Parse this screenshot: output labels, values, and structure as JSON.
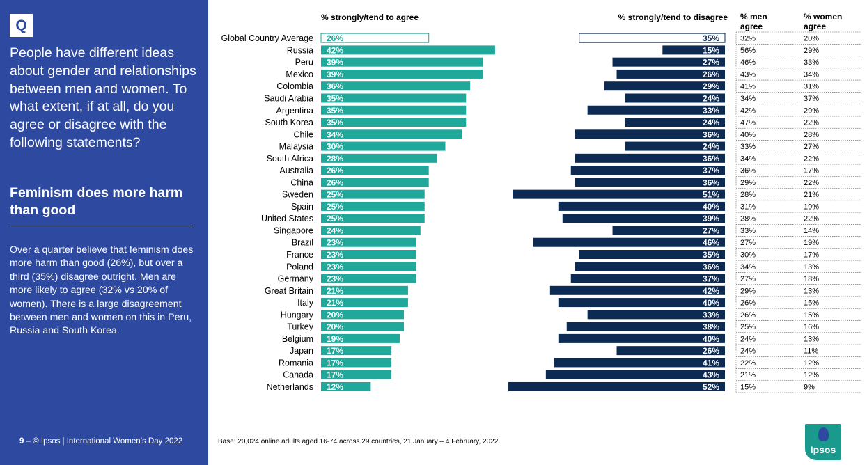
{
  "sidebar": {
    "badge": "Q",
    "question": "People have different ideas about gender and relationships between men and women. To what extent, if at all, do you agree or disagree  with the following statements?",
    "statement": "Feminism does more harm than good",
    "summary": "Over a quarter believe that feminism does more harm than good (26%), but over a third (35%) disagree outright. Men are more likely to agree (32% vs 20% of women). There is a large disagreement between men and women on this in Peru, Russia and South Korea.",
    "footer_page": "9 –",
    "footer_text": "© Ipsos | International Women’s Day 2022"
  },
  "footer": {
    "base": "Base: 20,024 online adults aged 16-74 across 29 countries, 21 January – 4 February, 2022"
  },
  "logo": {
    "text": "Ipsos"
  },
  "colors": {
    "sidebar": "#2e4aa0",
    "agree": "#20a89a",
    "disagree": "#0d2a52",
    "logo": "#1a9a8c"
  },
  "chart_data": {
    "type": "bar",
    "headers": {
      "agree": "% strongly/tend to agree",
      "disagree": "% strongly/tend to disagree",
      "men": "% men agree",
      "women": "% women agree"
    },
    "categories": [
      "Global Country Average",
      "Russia",
      "Peru",
      "Mexico",
      "Colombia",
      "Saudi Arabia",
      "Argentina",
      "South Korea",
      "Chile",
      "Malaysia",
      "South Africa",
      "Australia",
      "China",
      "Sweden",
      "Spain",
      "United States",
      "Singapore",
      "Brazil",
      "France",
      "Poland",
      "Germany",
      "Great Britain",
      "Italy",
      "Hungary",
      "Turkey",
      "Belgium",
      "Japan",
      "Romania",
      "Canada",
      "Netherlands"
    ],
    "series": [
      {
        "name": "% strongly/tend to agree",
        "values": [
          26,
          42,
          39,
          39,
          36,
          35,
          35,
          35,
          34,
          30,
          28,
          26,
          26,
          25,
          25,
          25,
          24,
          23,
          23,
          23,
          23,
          21,
          21,
          20,
          20,
          19,
          17,
          17,
          17,
          12
        ]
      },
      {
        "name": "% strongly/tend to disagree",
        "values": [
          35,
          15,
          27,
          26,
          29,
          24,
          33,
          24,
          36,
          24,
          36,
          37,
          36,
          51,
          40,
          39,
          27,
          46,
          35,
          36,
          37,
          42,
          40,
          33,
          38,
          40,
          26,
          41,
          43,
          52
        ]
      },
      {
        "name": "% men agree",
        "values": [
          32,
          56,
          46,
          43,
          41,
          34,
          42,
          47,
          40,
          33,
          34,
          36,
          29,
          28,
          31,
          28,
          33,
          27,
          30,
          34,
          27,
          29,
          26,
          26,
          25,
          24,
          24,
          22,
          21,
          15
        ]
      },
      {
        "name": "% women agree",
        "values": [
          20,
          29,
          33,
          34,
          31,
          37,
          29,
          22,
          28,
          27,
          22,
          17,
          22,
          21,
          19,
          22,
          14,
          19,
          17,
          13,
          18,
          13,
          15,
          15,
          16,
          13,
          11,
          12,
          12,
          9
        ]
      }
    ],
    "value_suffix": "%",
    "highlight_first_row": true
  }
}
